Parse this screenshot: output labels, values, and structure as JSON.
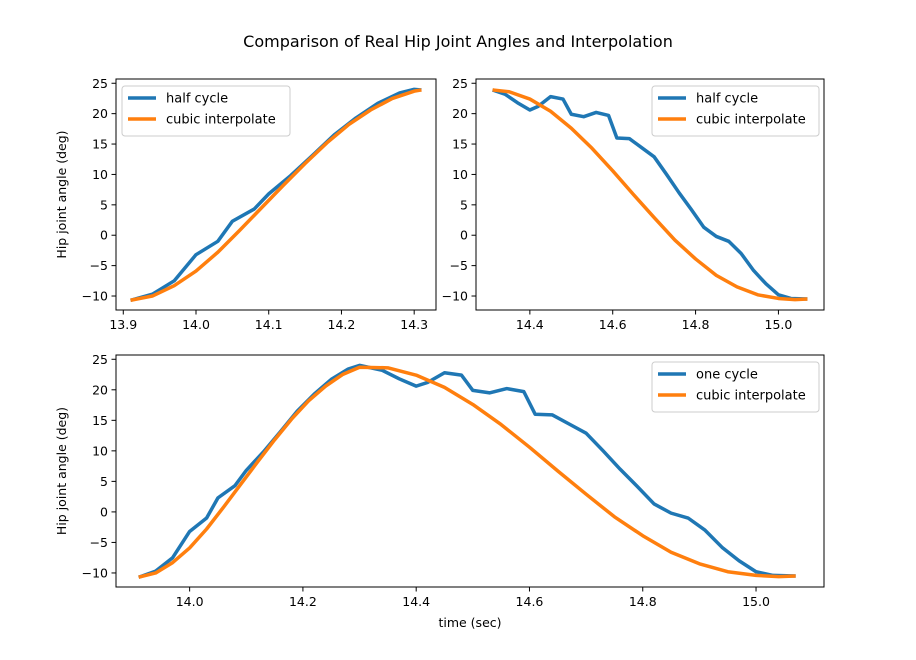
{
  "figure": {
    "title": "Comparison of Real Hip Joint Angles and Interpolation"
  },
  "colors": {
    "series_real": "#1f77b4",
    "series_interp": "#ff7f0e",
    "axis": "#000000",
    "legend_border": "#cccccc"
  },
  "chart_data": [
    {
      "type": "line",
      "panel": "top-left",
      "xlabel": "",
      "ylabel": "Hip joint angle (deg)",
      "xlim": [
        13.89,
        14.33
      ],
      "ylim": [
        -12.3,
        25.7
      ],
      "xticks": [
        13.9,
        14.0,
        14.1,
        14.2,
        14.3
      ],
      "xtick_labels": [
        "13.9",
        "14.0",
        "14.1",
        "14.2",
        "14.3"
      ],
      "yticks": [
        -10,
        -5,
        0,
        5,
        10,
        15,
        20,
        25
      ],
      "ytick_labels": [
        "−10",
        "−5",
        "0",
        "5",
        "10",
        "15",
        "20",
        "25"
      ],
      "grid": false,
      "legend_position": "top-left",
      "series": [
        {
          "name": "half cycle",
          "x": [
            13.91,
            13.94,
            13.97,
            14.0,
            14.03,
            14.05,
            14.08,
            14.1,
            14.13,
            14.16,
            14.19,
            14.22,
            14.25,
            14.28,
            14.3,
            14.31
          ],
          "y": [
            -10.7,
            -9.7,
            -7.5,
            -3.2,
            -1.0,
            2.3,
            4.3,
            6.8,
            9.8,
            13.1,
            16.5,
            19.3,
            21.7,
            23.4,
            24.0,
            23.9
          ]
        },
        {
          "name": "cubic interpolate",
          "x": [
            13.91,
            13.94,
            13.97,
            14.0,
            14.03,
            14.06,
            14.09,
            14.12,
            14.15,
            14.18,
            14.21,
            14.24,
            14.27,
            14.3,
            14.31
          ],
          "y": [
            -10.7,
            -10.0,
            -8.3,
            -5.9,
            -2.8,
            0.8,
            4.5,
            8.2,
            11.8,
            15.2,
            18.2,
            20.6,
            22.5,
            23.7,
            23.9
          ]
        }
      ]
    },
    {
      "type": "line",
      "panel": "top-right",
      "xlabel": "",
      "ylabel": "",
      "xlim": [
        14.27,
        15.11
      ],
      "ylim": [
        -12.3,
        25.7
      ],
      "xticks": [
        14.4,
        14.6,
        14.8,
        15.0
      ],
      "xtick_labels": [
        "14.4",
        "14.6",
        "14.8",
        "15.0"
      ],
      "yticks": [
        -10,
        -5,
        0,
        5,
        10,
        15,
        20,
        25
      ],
      "ytick_labels": [
        "−10",
        "−5",
        "0",
        "5",
        "10",
        "15",
        "20",
        "25"
      ],
      "grid": false,
      "legend_position": "top-right",
      "series": [
        {
          "name": "half cycle",
          "x": [
            14.31,
            14.34,
            14.37,
            14.4,
            14.42,
            14.45,
            14.48,
            14.5,
            14.53,
            14.56,
            14.59,
            14.61,
            14.64,
            14.67,
            14.7,
            14.73,
            14.76,
            14.79,
            14.82,
            14.85,
            14.88,
            14.91,
            14.94,
            14.97,
            15.0,
            15.03,
            15.07
          ],
          "y": [
            23.9,
            23.2,
            21.8,
            20.6,
            21.2,
            22.8,
            22.4,
            19.9,
            19.5,
            20.2,
            19.7,
            16.0,
            15.9,
            14.4,
            12.9,
            10.0,
            7.0,
            4.2,
            1.3,
            -0.2,
            -1.0,
            -3.0,
            -5.8,
            -8.0,
            -9.8,
            -10.4,
            -10.5
          ]
        },
        {
          "name": "cubic interpolate",
          "x": [
            14.31,
            14.35,
            14.4,
            14.45,
            14.5,
            14.55,
            14.6,
            14.65,
            14.7,
            14.75,
            14.8,
            14.85,
            14.9,
            14.95,
            15.0,
            15.04,
            15.07
          ],
          "y": [
            23.9,
            23.6,
            22.4,
            20.4,
            17.6,
            14.3,
            10.6,
            6.7,
            2.9,
            -0.8,
            -3.9,
            -6.6,
            -8.5,
            -9.8,
            -10.4,
            -10.6,
            -10.5
          ]
        }
      ]
    },
    {
      "type": "line",
      "panel": "bottom",
      "xlabel": "time (sec)",
      "ylabel": "Hip joint angle (deg)",
      "xlim": [
        13.87,
        15.12
      ],
      "ylim": [
        -12.3,
        25.7
      ],
      "xticks": [
        14.0,
        14.2,
        14.4,
        14.6,
        14.8,
        15.0
      ],
      "xtick_labels": [
        "14.0",
        "14.2",
        "14.4",
        "14.6",
        "14.8",
        "15.0"
      ],
      "yticks": [
        -10,
        -5,
        0,
        5,
        10,
        15,
        20,
        25
      ],
      "ytick_labels": [
        "−10",
        "−5",
        "0",
        "5",
        "10",
        "15",
        "20",
        "25"
      ],
      "grid": false,
      "legend_position": "top-right",
      "series": [
        {
          "name": "one cycle",
          "x": [
            13.91,
            13.94,
            13.97,
            14.0,
            14.03,
            14.05,
            14.08,
            14.1,
            14.13,
            14.16,
            14.19,
            14.22,
            14.25,
            14.28,
            14.3,
            14.34,
            14.37,
            14.4,
            14.42,
            14.45,
            14.48,
            14.5,
            14.53,
            14.56,
            14.59,
            14.61,
            14.64,
            14.67,
            14.7,
            14.73,
            14.76,
            14.79,
            14.82,
            14.85,
            14.88,
            14.91,
            14.94,
            14.97,
            15.0,
            15.03,
            15.07
          ],
          "y": [
            -10.7,
            -9.7,
            -7.5,
            -3.2,
            -1.0,
            2.3,
            4.3,
            6.8,
            9.8,
            13.1,
            16.5,
            19.3,
            21.7,
            23.4,
            24.0,
            23.2,
            21.8,
            20.6,
            21.2,
            22.8,
            22.4,
            19.9,
            19.5,
            20.2,
            19.7,
            16.0,
            15.9,
            14.4,
            12.9,
            10.0,
            7.0,
            4.2,
            1.3,
            -0.2,
            -1.0,
            -3.0,
            -5.8,
            -8.0,
            -9.8,
            -10.4,
            -10.5
          ]
        },
        {
          "name": "cubic interpolate",
          "x": [
            13.91,
            13.94,
            13.97,
            14.0,
            14.03,
            14.06,
            14.09,
            14.12,
            14.15,
            14.18,
            14.21,
            14.24,
            14.27,
            14.3,
            14.35,
            14.4,
            14.45,
            14.5,
            14.55,
            14.6,
            14.65,
            14.7,
            14.75,
            14.8,
            14.85,
            14.9,
            14.95,
            15.0,
            15.04,
            15.07
          ],
          "y": [
            -10.7,
            -10.0,
            -8.3,
            -5.9,
            -2.8,
            0.8,
            4.5,
            8.2,
            11.8,
            15.2,
            18.2,
            20.6,
            22.5,
            23.7,
            23.6,
            22.4,
            20.4,
            17.6,
            14.3,
            10.6,
            6.7,
            2.9,
            -0.8,
            -3.9,
            -6.6,
            -8.5,
            -9.8,
            -10.4,
            -10.6,
            -10.5
          ]
        }
      ]
    }
  ]
}
